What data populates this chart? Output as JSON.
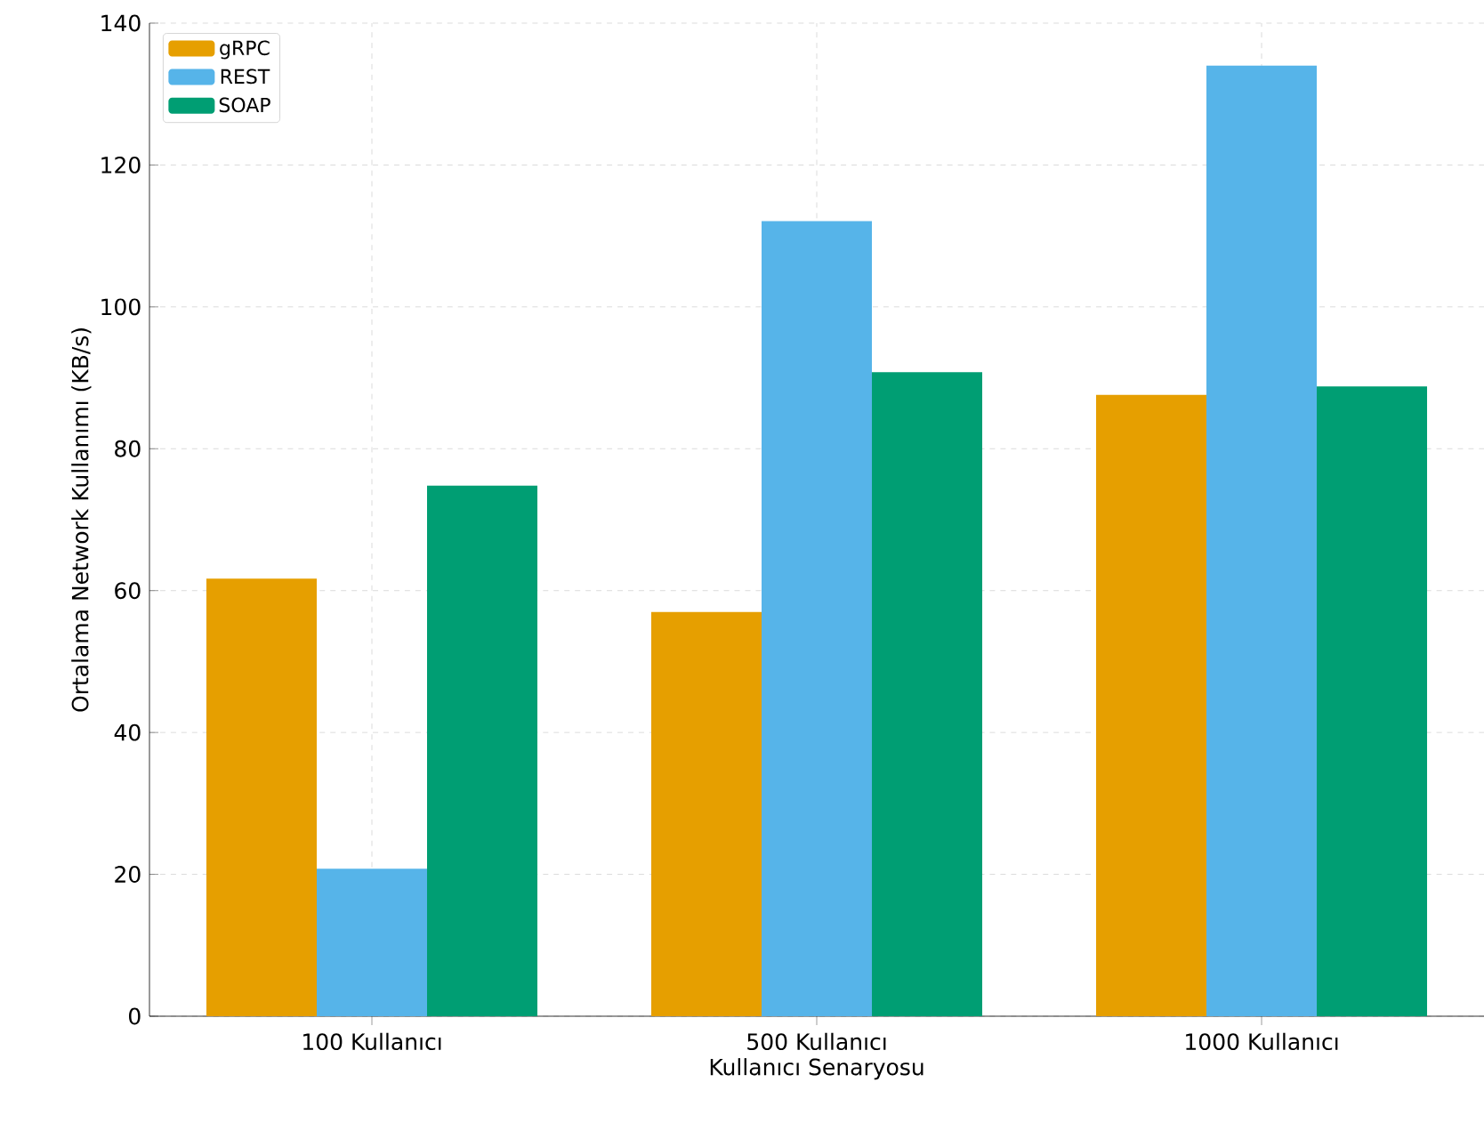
{
  "chart_data": {
    "type": "bar",
    "xlabel": "Kullanıcı Senaryosu",
    "ylabel": "Ortalama Network Kullanımı (KB/s)",
    "categories": [
      "100 Kullanıcı",
      "500 Kullanıcı",
      "1000 Kullanıcı"
    ],
    "series": [
      {
        "name": "gRPC",
        "color": "#e69f00",
        "values": [
          61.7,
          57.0,
          87.6
        ]
      },
      {
        "name": "REST",
        "color": "#56b4e9",
        "values": [
          20.8,
          112.1,
          134.0
        ]
      },
      {
        "name": "SOAP",
        "color": "#009e73",
        "values": [
          74.8,
          90.8,
          88.8
        ]
      }
    ],
    "ylim": [
      0,
      140
    ],
    "yticks": [
      0,
      20,
      40,
      60,
      80,
      100,
      120,
      140
    ],
    "grid": true,
    "legend": "top left"
  }
}
